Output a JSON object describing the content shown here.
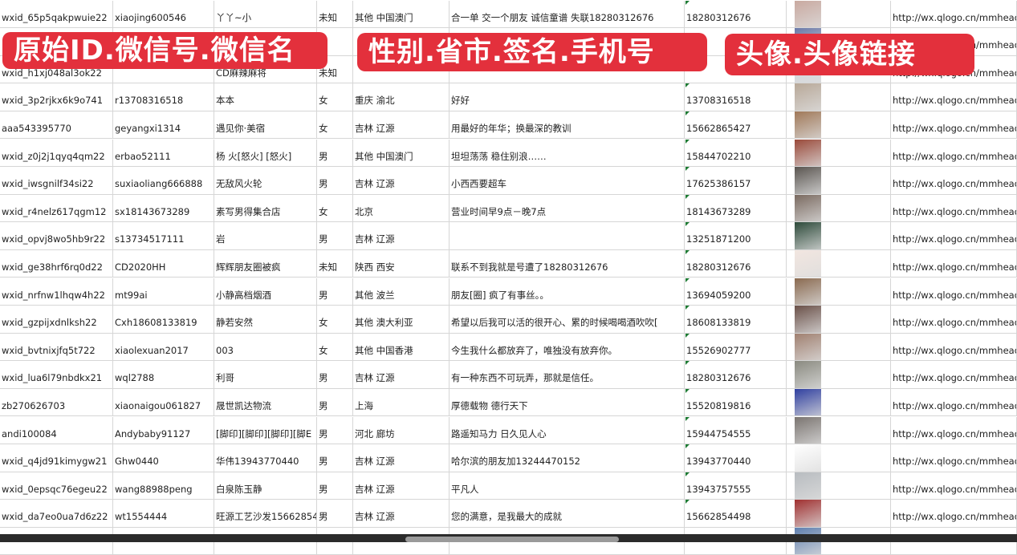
{
  "overlay_labels": [
    "原始ID.微信号.微信名",
    "性别.省市.签名.手机号",
    "头像.头像链接"
  ],
  "colors": {
    "label_bg": "#e3303c",
    "grid": "#d6d6d6",
    "comment_marker": "#1e7b34"
  },
  "rows": [
    {
      "id": "wxid_65p5qakpwuie22",
      "wechat": "xiaojing600546",
      "name": "丫丫~小",
      "gender": "未知",
      "region": "其他 中国澳门",
      "signature": "合一单 交一个朋友 诚信童谱 失联18280312676",
      "phone": "18280312676",
      "avatar_color": "#c9a9a0",
      "url": "http://wx.qlogo.cn/mmhead"
    },
    {
      "id": "",
      "wechat": "",
      "name": "",
      "gender": "",
      "region": "",
      "signature": "",
      "phone": "",
      "avatar_color": "#6a79a8",
      "url": "http://wx.qlogo.cn/mmhead"
    },
    {
      "id": "wxid_h1xj048al3ok22",
      "wechat": "",
      "name": "CD麻辣麻将",
      "gender": "未知",
      "region": "",
      "signature": "",
      "phone": "",
      "avatar_color": "#d0d4dc",
      "url": "http://wx.qlogo.cn/mmhead"
    },
    {
      "id": "wxid_3p2rjkx6k9o741",
      "wechat": "r13708316518",
      "name": "本本",
      "gender": "女",
      "region": "重庆 渝北",
      "signature": "好好",
      "phone": "13708316518",
      "avatar_color": "#b8a898",
      "url": "http://wx.qlogo.cn/mmhead"
    },
    {
      "id": "aaa543395770",
      "wechat": "geyangxi1314",
      "name": "遇见你·美宿",
      "gender": "女",
      "region": "吉林 辽源",
      "signature": "用最好的年华；换最深的教训",
      "phone": "15662865427",
      "avatar_color": "#a07858",
      "url": "http://wx.qlogo.cn/mmhead"
    },
    {
      "id": "wxid_z0j2j1qyq4qm22",
      "wechat": "erbao52111",
      "name": "杨 火[怒火] [怒火]",
      "gender": "男",
      "region": "其他 中国澳门",
      "signature": "坦坦荡荡 稳住别浪……",
      "phone": "15844702210",
      "avatar_color": "#9a4a3a",
      "url": "http://wx.qlogo.cn/mmhead"
    },
    {
      "id": "wxid_iwsgnilf34si22",
      "wechat": "suxiaoliang666888",
      "name": "无敌风火轮",
      "gender": "男",
      "region": "吉林 辽源",
      "signature": "小西西要超车",
      "phone": "17625386157",
      "avatar_color": "#5a5550",
      "url": "http://wx.qlogo.cn/mmhead"
    },
    {
      "id": "wxid_r4nelz617qgm12",
      "wechat": "sx18143673289",
      "name": "素写男得集合店",
      "gender": "女",
      "region": "北京",
      "signature": "营业时间早9点－晚7点",
      "phone": "18143673289",
      "avatar_color": "#7a6a60",
      "url": "http://wx.qlogo.cn/mmhead"
    },
    {
      "id": "wxid_opvj8wo5hb9r22",
      "wechat": "s13734517111",
      "name": "岩",
      "gender": "男",
      "region": "吉林 辽源",
      "signature": "",
      "phone": "13251871200",
      "avatar_color": "#2d4a3a",
      "url": "http://wx.qlogo.cn/mmhead"
    },
    {
      "id": "wxid_ge38hrf6rq0d22",
      "wechat": "CD2020HH",
      "name": "辉辉朋友圈被疯",
      "gender": "未知",
      "region": "陕西 西安",
      "signature": "联系不到我就是号遭了18280312676",
      "phone": "18280312676",
      "avatar_color": "#f2e6e0",
      "url": "http://wx.qlogo.cn/mmhead"
    },
    {
      "id": "wxid_nrfnw1lhqw4h22",
      "wechat": "mt99ai",
      "name": "小静高档烟酒",
      "gender": "男",
      "region": "其他 波兰",
      "signature": "朋友[圈] 疯了有事丝。。",
      "phone": "13694059200",
      "avatar_color": "#8a6a50",
      "url": "http://wx.qlogo.cn/mmhead"
    },
    {
      "id": "wxid_gzpijxdnlksh22",
      "wechat": "Cxh18608133819",
      "name": "静若安然",
      "gender": "女",
      "region": "其他 澳大利亚",
      "signature": "希望以后我可以活的很开心、累的时候喝喝酒吹吹[",
      "phone": "18608133819",
      "avatar_color": "#6a5048",
      "url": "http://wx.qlogo.cn/mmhead"
    },
    {
      "id": "wxid_bvtnixjfq5t722",
      "wechat": "xiaolexuan2017",
      "name": "003",
      "gender": "女",
      "region": "其他 中国香港",
      "signature": "今生我什么都放弃了，唯独没有放弃你。",
      "phone": "15526902777",
      "avatar_color": "#a08070",
      "url": "http://wx.qlogo.cn/mmhead"
    },
    {
      "id": "wxid_lua6l79nbdkx21",
      "wechat": "wql2788",
      "name": "利哥",
      "gender": "男",
      "region": "吉林 辽源",
      "signature": "有一种东西不可玩弄，那就是信任。",
      "phone": "18280312676",
      "avatar_color": "#8a8a80",
      "url": "http://wx.qlogo.cn/mmhead"
    },
    {
      "id": "zb270626703",
      "wechat": "xiaonaigou061827",
      "name": "晟世凯达物流",
      "gender": "男",
      "region": "上海",
      "signature": "厚德载物 德行天下",
      "phone": "15520819816",
      "avatar_color": "#3040a0",
      "url": "http://wx.qlogo.cn/mmhead"
    },
    {
      "id": "andi100084",
      "wechat": "Andybaby91127",
      "name": "[脚印][脚印][脚印][脚E",
      "gender": "男",
      "region": "河北 廊坊",
      "signature": "路遥知马力 日久见人心",
      "phone": "15944754555",
      "avatar_color": "#7a7470",
      "url": "http://wx.qlogo.cn/mmhead"
    },
    {
      "id": "wxid_q4jd91kimygw21",
      "wechat": "Ghw0440",
      "name": "华伟13943770440",
      "gender": "男",
      "region": "吉林 辽源",
      "signature": "哈尔滨的朋友加13244470152",
      "phone": "13943770440",
      "avatar_color": "#ffffff",
      "url": "http://wx.qlogo.cn/mmhead"
    },
    {
      "id": "wxid_0epsqc76egeu22",
      "wechat": "wang88988peng",
      "name": "白泉陈玉静",
      "gender": "男",
      "region": "吉林 辽源",
      "signature": "平凡人",
      "phone": "13943757555",
      "avatar_color": "#b8bcc0",
      "url": "http://wx.qlogo.cn/mmhead"
    },
    {
      "id": "wxid_da7eo0ua7d6z22",
      "wechat": "wt1554444",
      "name": "旺源工艺沙发15662854",
      "gender": "男",
      "region": "吉林 辽源",
      "signature": "您的满意，是我最大的成就",
      "phone": "15662854498",
      "avatar_color": "#a03030",
      "url": "http://wx.qlogo.cn/mmhead"
    },
    {
      "id": "",
      "wechat": "",
      "name": "",
      "gender": "",
      "region": "",
      "signature": "",
      "phone": "",
      "avatar_color": "#6080b0",
      "url": ""
    }
  ]
}
